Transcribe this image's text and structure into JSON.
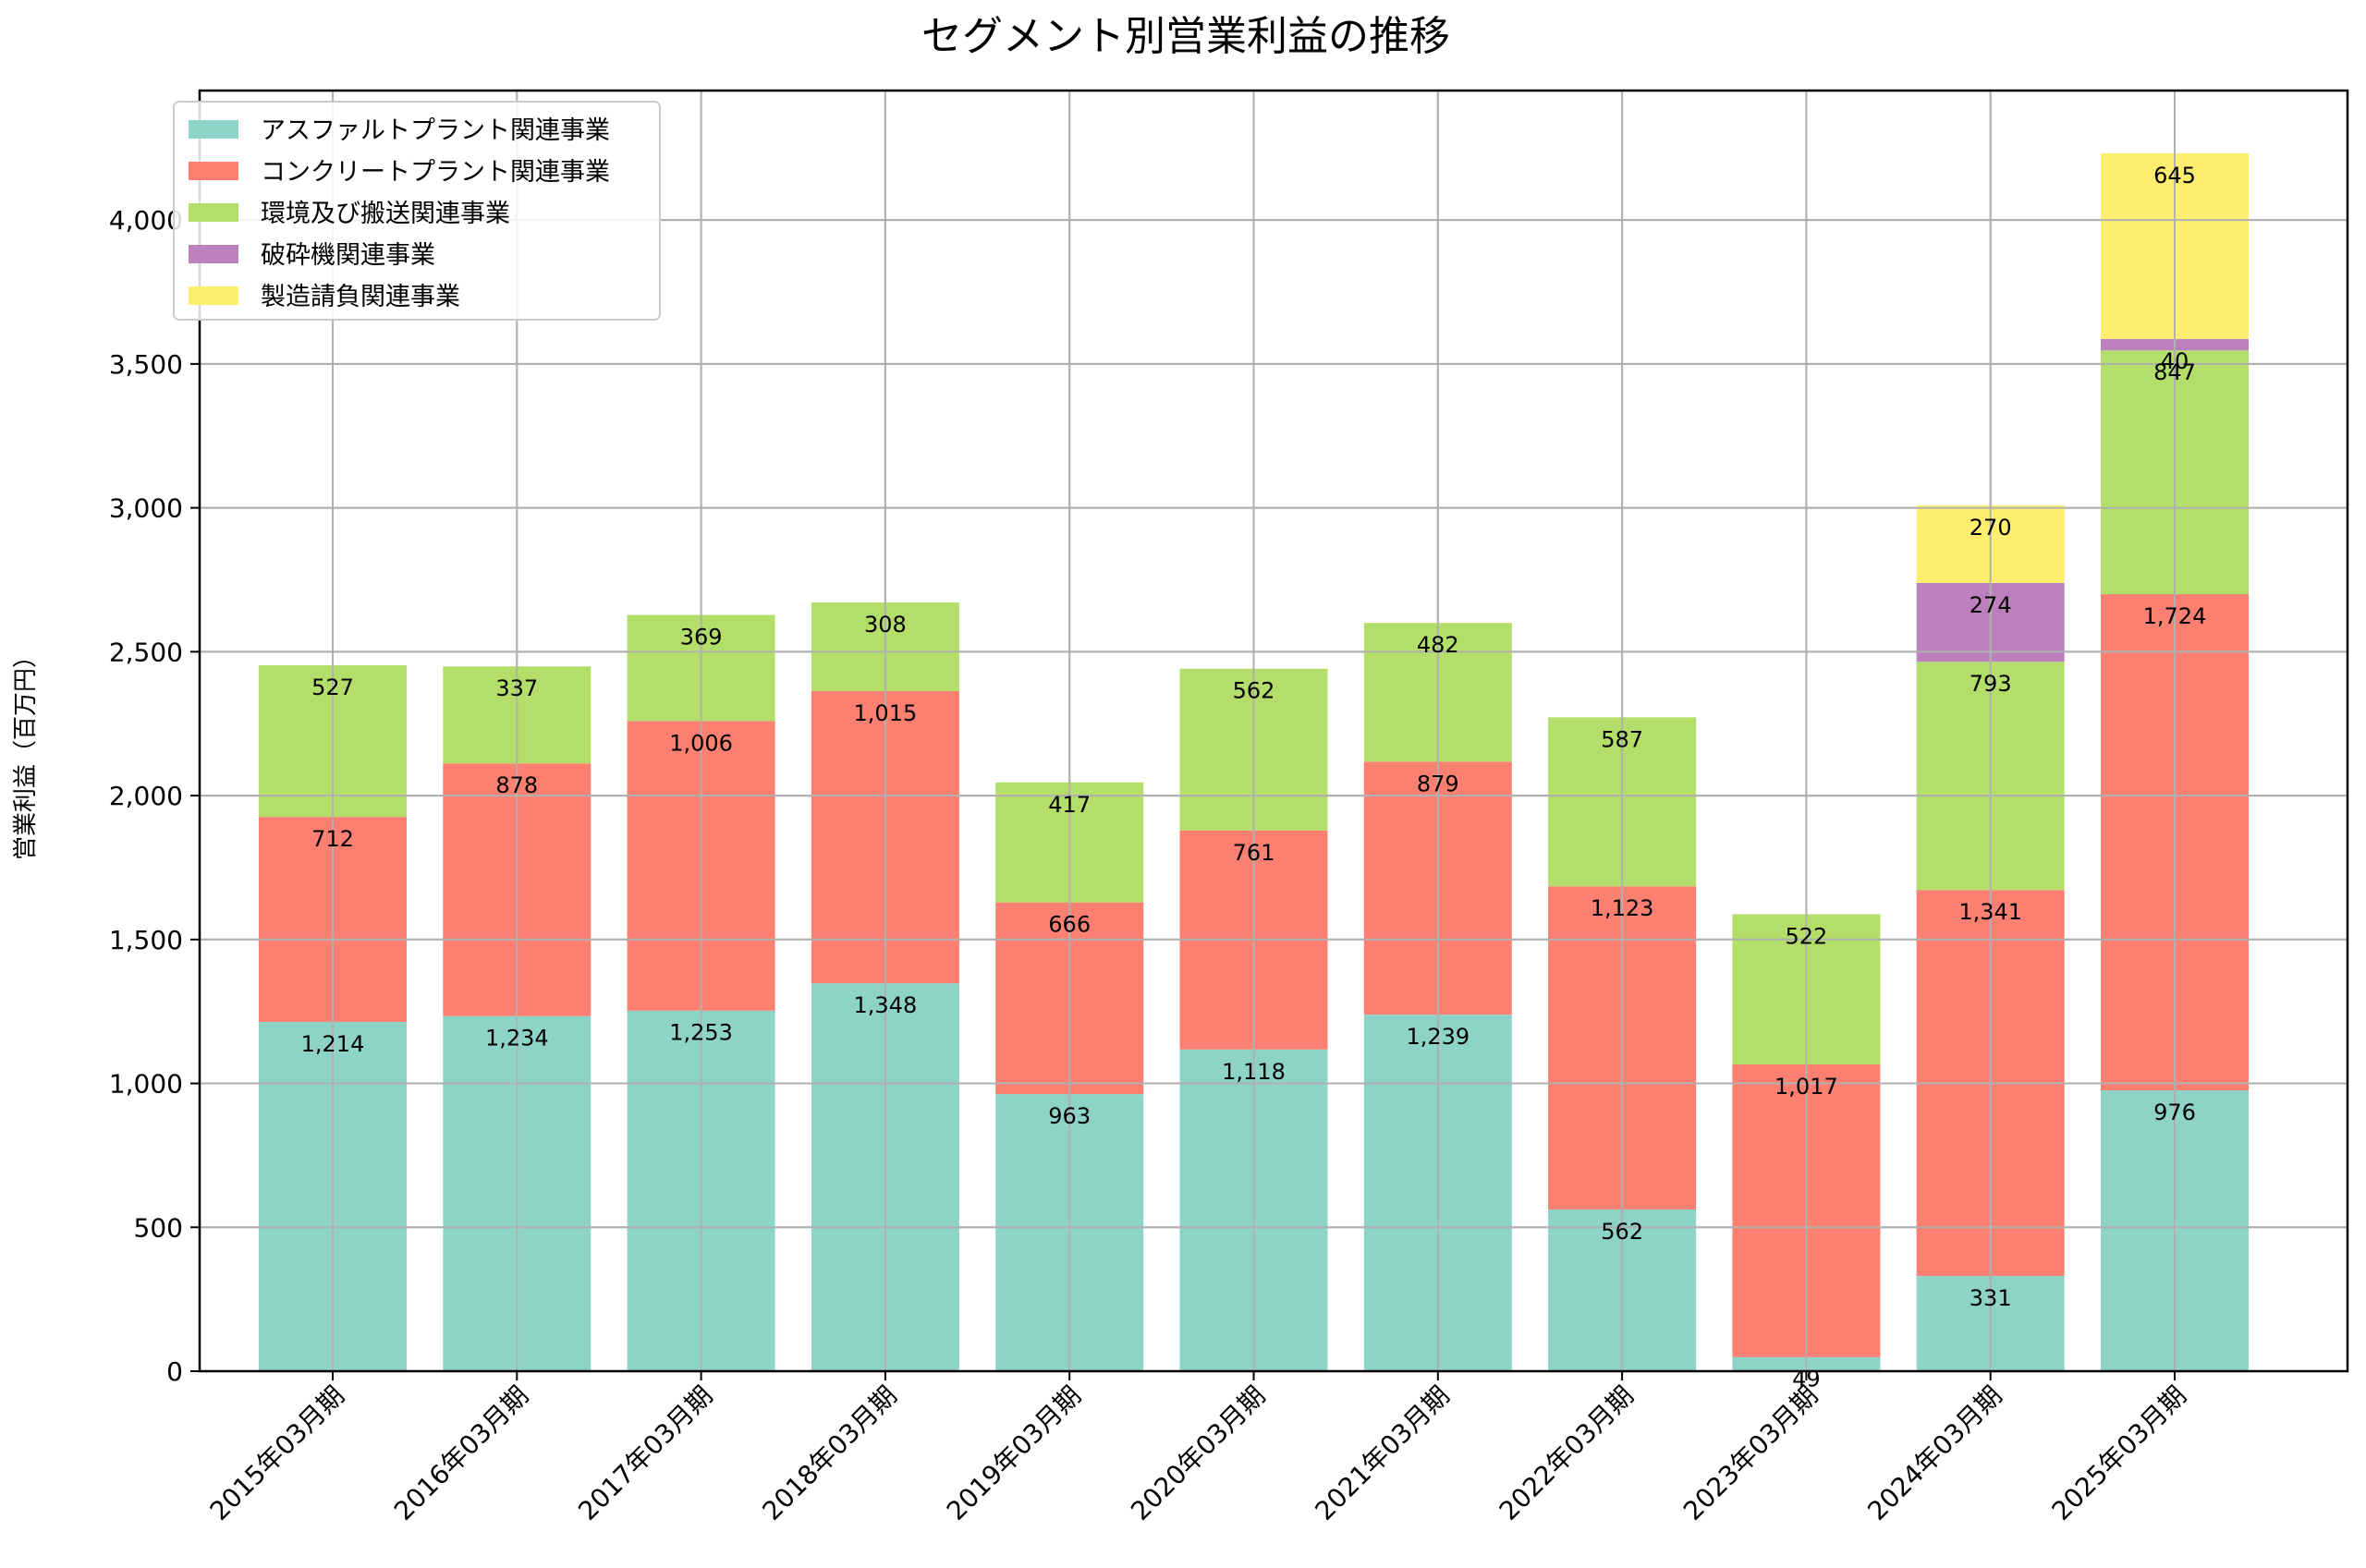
{
  "chart_data": {
    "type": "bar",
    "stacked": true,
    "title": "セグメント別営業利益の推移",
    "xlabel": "",
    "ylabel": "営業利益（百万円）",
    "ylim": [
      0,
      4450
    ],
    "yticks": [
      0,
      500,
      1000,
      1500,
      2000,
      2500,
      3000,
      3500,
      4000
    ],
    "ytick_labels": [
      "0",
      "500",
      "1,000",
      "1,500",
      "2,000",
      "2,500",
      "3,000",
      "3,500",
      "4,000"
    ],
    "grid": true,
    "legend_position": "top-left",
    "categories": [
      "2015年03月期",
      "2016年03月期",
      "2017年03月期",
      "2018年03月期",
      "2019年03月期",
      "2020年03月期",
      "2021年03月期",
      "2022年03月期",
      "2023年03月期",
      "2024年03月期",
      "2025年03月期"
    ],
    "series": [
      {
        "name": "アスファルトプラント関連事業",
        "color": "#8dd3c7",
        "values": [
          1214,
          1234,
          1253,
          1348,
          963,
          1118,
          1239,
          562,
          49,
          331,
          976
        ]
      },
      {
        "name": "コンクリートプラント関連事業",
        "color": "#fb8072",
        "values": [
          712,
          878,
          1006,
          1015,
          666,
          761,
          879,
          1123,
          1017,
          1341,
          1724
        ]
      },
      {
        "name": "環境及び搬送関連事業",
        "color": "#b3de69",
        "values": [
          527,
          337,
          369,
          308,
          417,
          562,
          482,
          587,
          522,
          793,
          847
        ]
      },
      {
        "name": "破砕機関連事業",
        "color": "#bc80bd",
        "values": [
          null,
          null,
          null,
          null,
          null,
          null,
          null,
          null,
          null,
          274,
          40
        ]
      },
      {
        "name": "製造請負関連事業",
        "color": "#ffed6f",
        "values": [
          null,
          null,
          null,
          null,
          null,
          null,
          null,
          null,
          null,
          270,
          645
        ]
      }
    ]
  }
}
